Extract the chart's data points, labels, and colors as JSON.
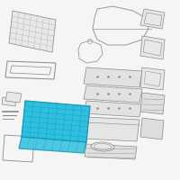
{
  "bg": "#f5f5f5",
  "hc": "#2ec0e0",
  "he": "#1a9ab8",
  "pc": "#e8e8e8",
  "pe": "#888888",
  "lc": "#999999",
  "lw": 0.5
}
